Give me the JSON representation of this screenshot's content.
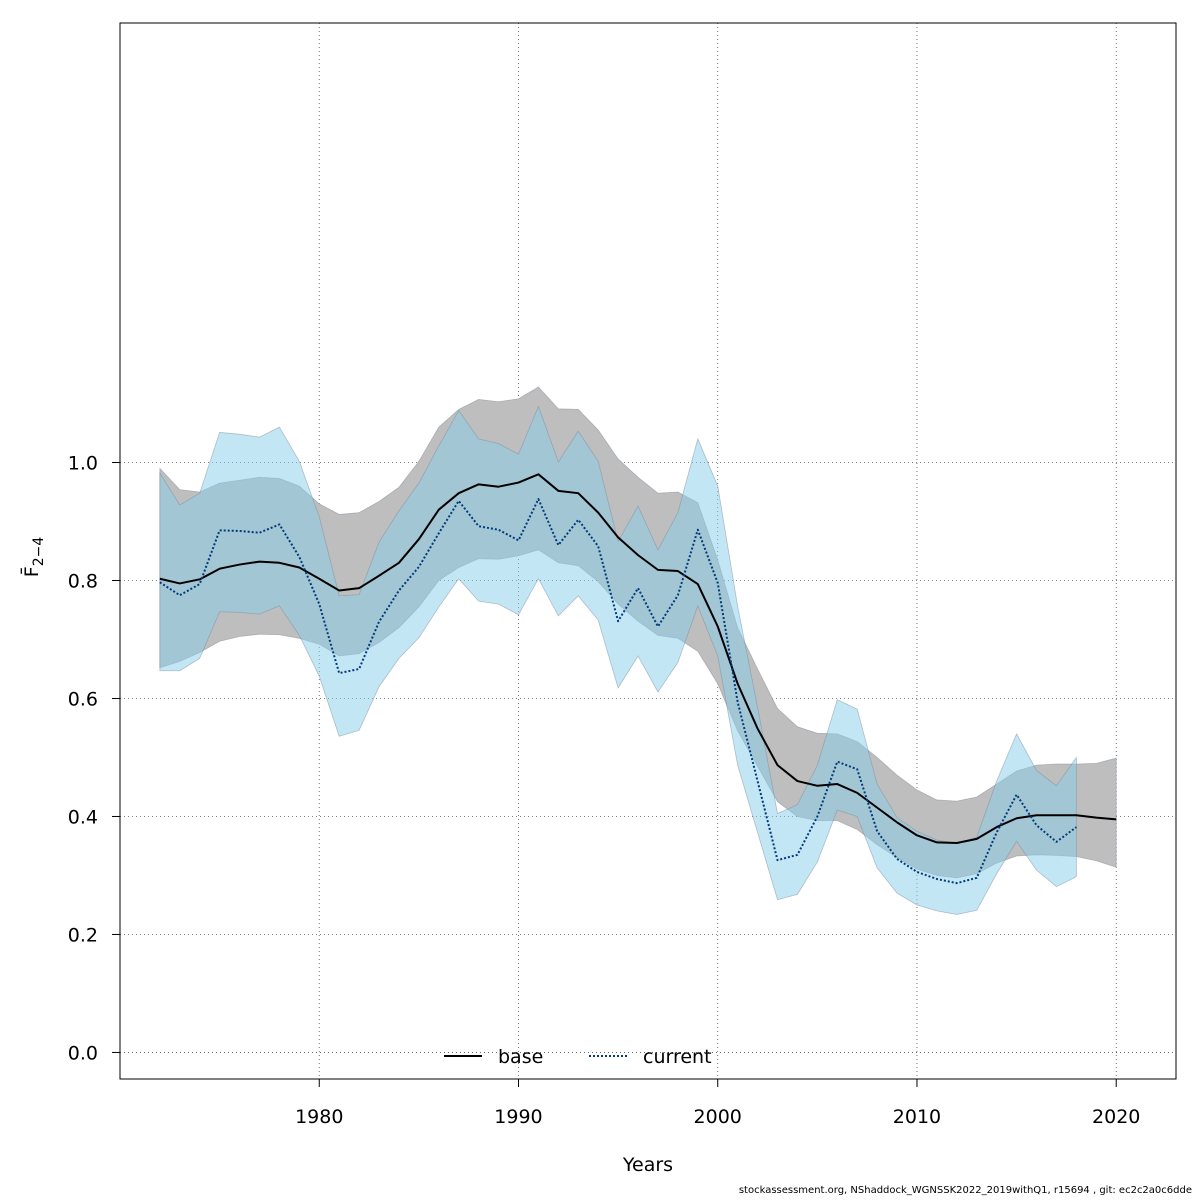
{
  "chart_data": {
    "type": "line",
    "xlabel": "Years",
    "ylabel": "F̄",
    "ylabel_sub": "2−4",
    "xlim": [
      1970,
      2023
    ],
    "ylim": [
      -0.045,
      1.745
    ],
    "xticks": [
      1980,
      1990,
      2000,
      2010,
      2020
    ],
    "yticks": [
      0.0,
      0.2,
      0.4,
      0.6,
      0.8,
      1.0
    ],
    "xtick_labels": [
      "1980",
      "1990",
      "2000",
      "2010",
      "2020"
    ],
    "ytick_labels": [
      "0.0",
      "0.2",
      "0.4",
      "0.6",
      "0.8",
      "1.0"
    ],
    "grid": true,
    "legend_position": "bottom-center",
    "colors": {
      "base_band": "#bebebe",
      "current_band": "#87ceeb",
      "base_line": "#000000",
      "current_line": "#003b7a"
    },
    "series": [
      {
        "name": "base",
        "style": "solid",
        "x": [
          1972,
          1973,
          1974,
          1975,
          1976,
          1977,
          1978,
          1979,
          1980,
          1981,
          1982,
          1983,
          1984,
          1985,
          1986,
          1987,
          1988,
          1989,
          1990,
          1991,
          1992,
          1993,
          1994,
          1995,
          1996,
          1997,
          1998,
          1999,
          2000,
          2001,
          2002,
          2003,
          2004,
          2005,
          2006,
          2007,
          2008,
          2009,
          2010,
          2011,
          2012,
          2013,
          2014,
          2015,
          2016,
          2017,
          2018,
          2019,
          2020
        ],
        "y": [
          0.803,
          0.795,
          0.802,
          0.82,
          0.827,
          0.832,
          0.83,
          0.822,
          0.803,
          0.783,
          0.787,
          0.808,
          0.83,
          0.87,
          0.92,
          0.948,
          0.963,
          0.959,
          0.966,
          0.98,
          0.952,
          0.948,
          0.915,
          0.873,
          0.843,
          0.818,
          0.816,
          0.794,
          0.722,
          0.625,
          0.549,
          0.487,
          0.46,
          0.452,
          0.455,
          0.44,
          0.415,
          0.39,
          0.368,
          0.356,
          0.355,
          0.362,
          0.382,
          0.397,
          0.402,
          0.402,
          0.402,
          0.398,
          0.395
        ],
        "lower": [
          0.652,
          0.663,
          0.678,
          0.697,
          0.705,
          0.709,
          0.708,
          0.702,
          0.692,
          0.672,
          0.676,
          0.695,
          0.72,
          0.755,
          0.8,
          0.822,
          0.837,
          0.836,
          0.842,
          0.852,
          0.83,
          0.825,
          0.798,
          0.76,
          0.731,
          0.707,
          0.702,
          0.68,
          0.625,
          0.545,
          0.485,
          0.425,
          0.4,
          0.393,
          0.393,
          0.378,
          0.352,
          0.33,
          0.311,
          0.3,
          0.296,
          0.303,
          0.321,
          0.333,
          0.335,
          0.334,
          0.332,
          0.325,
          0.314
        ],
        "upper": [
          0.99,
          0.954,
          0.95,
          0.965,
          0.97,
          0.975,
          0.973,
          0.96,
          0.93,
          0.912,
          0.915,
          0.934,
          0.958,
          1.002,
          1.06,
          1.09,
          1.107,
          1.103,
          1.108,
          1.128,
          1.091,
          1.09,
          1.055,
          1.006,
          0.975,
          0.948,
          0.95,
          0.932,
          0.835,
          0.72,
          0.65,
          0.583,
          0.552,
          0.541,
          0.54,
          0.527,
          0.5,
          0.47,
          0.445,
          0.428,
          0.426,
          0.433,
          0.455,
          0.477,
          0.487,
          0.489,
          0.489,
          0.49,
          0.499
        ]
      },
      {
        "name": "current",
        "style": "dotted",
        "x": [
          1972,
          1973,
          1974,
          1975,
          1976,
          1977,
          1978,
          1979,
          1980,
          1981,
          1982,
          1983,
          1984,
          1985,
          1986,
          1987,
          1988,
          1989,
          1990,
          1991,
          1992,
          1993,
          1994,
          1995,
          1996,
          1997,
          1998,
          1999,
          2000,
          2001,
          2002,
          2003,
          2004,
          2005,
          2006,
          2007,
          2008,
          2009,
          2010,
          2011,
          2012,
          2013,
          2014,
          2015,
          2016,
          2017,
          2018
        ],
        "y": [
          0.797,
          0.775,
          0.794,
          0.885,
          0.884,
          0.881,
          0.895,
          0.84,
          0.76,
          0.643,
          0.65,
          0.73,
          0.783,
          0.823,
          0.88,
          0.935,
          0.892,
          0.886,
          0.868,
          0.938,
          0.86,
          0.903,
          0.858,
          0.731,
          0.787,
          0.722,
          0.775,
          0.886,
          0.796,
          0.594,
          0.46,
          0.326,
          0.335,
          0.4,
          0.493,
          0.48,
          0.375,
          0.328,
          0.306,
          0.294,
          0.287,
          0.296,
          0.373,
          0.437,
          0.385,
          0.357,
          0.382
        ],
        "lower": [
          0.647,
          0.647,
          0.668,
          0.747,
          0.746,
          0.743,
          0.757,
          0.707,
          0.638,
          0.536,
          0.546,
          0.62,
          0.668,
          0.703,
          0.755,
          0.803,
          0.765,
          0.76,
          0.742,
          0.803,
          0.74,
          0.774,
          0.733,
          0.618,
          0.672,
          0.611,
          0.661,
          0.757,
          0.672,
          0.487,
          0.373,
          0.259,
          0.268,
          0.323,
          0.411,
          0.4,
          0.313,
          0.27,
          0.25,
          0.24,
          0.234,
          0.241,
          0.303,
          0.358,
          0.309,
          0.281,
          0.298
        ],
        "upper": [
          0.982,
          0.928,
          0.948,
          1.051,
          1.048,
          1.043,
          1.06,
          1.002,
          0.908,
          0.774,
          0.776,
          0.865,
          0.918,
          0.965,
          1.028,
          1.088,
          1.04,
          1.032,
          1.014,
          1.095,
          1.001,
          1.053,
          1.002,
          0.866,
          0.926,
          0.852,
          0.915,
          1.04,
          0.96,
          0.756,
          0.585,
          0.405,
          0.42,
          0.487,
          0.598,
          0.582,
          0.455,
          0.398,
          0.375,
          0.36,
          0.354,
          0.365,
          0.46,
          0.54,
          0.478,
          0.452,
          0.5
        ]
      }
    ]
  },
  "footer_text": "stockassessment.org, NShaddock_WGNSSK2022_2019withQ1, r15694 , git: ec2c2a0c6dde"
}
